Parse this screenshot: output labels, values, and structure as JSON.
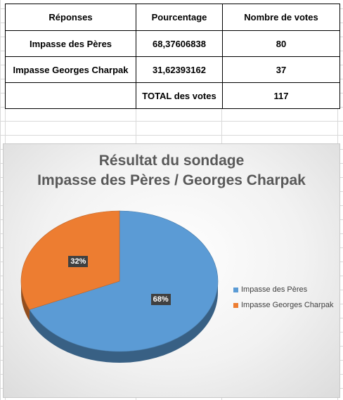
{
  "table": {
    "headers": [
      "Réponses",
      "Pourcentage",
      "Nombre de votes"
    ],
    "rows": [
      {
        "reponse": "Impasse des Pères",
        "pourcentage": "68,37606838",
        "votes": "80"
      },
      {
        "reponse": "Impasse Georges Charpak",
        "pourcentage": "31,62393162",
        "votes": "37"
      }
    ],
    "total": {
      "label": "TOTAL des votes",
      "votes": "117"
    }
  },
  "chart_data": {
    "type": "pie",
    "title_line1": "Résultat du sondage",
    "title_line2": "Impasse des Pères / Georges Charpak",
    "categories": [
      "Impasse des Pères",
      "Impasse Georges Charpak"
    ],
    "values": [
      68.37606838,
      31.62393162
    ],
    "data_labels": [
      "68%",
      "32%"
    ],
    "colors": [
      "#5b9bd5",
      "#ed7d31"
    ],
    "legend_position": "right",
    "style": "3d"
  }
}
